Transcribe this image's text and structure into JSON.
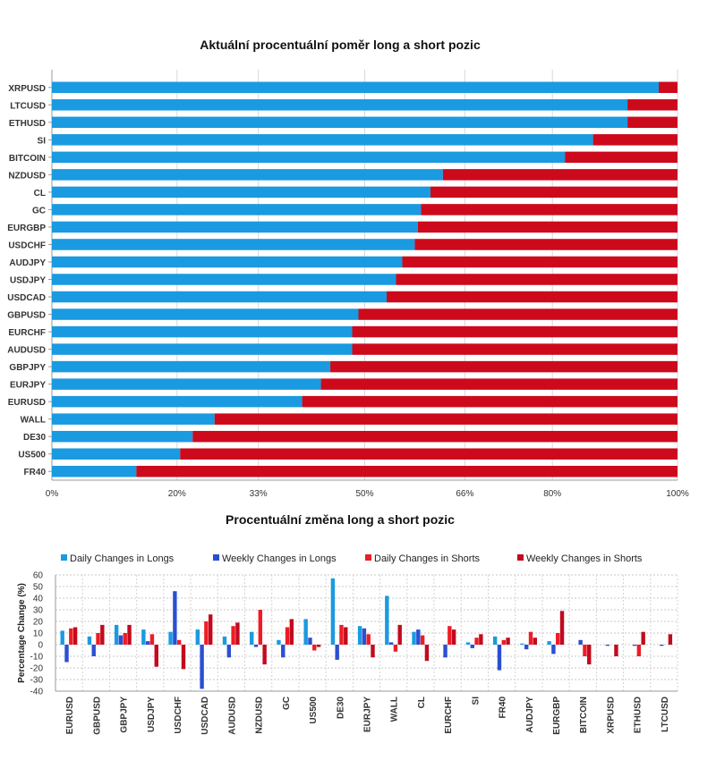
{
  "chart_data": [
    {
      "type": "bar",
      "stacked": true,
      "orientation": "horizontal",
      "title": "Aktuální procentuální poměr long a short pozic",
      "categories": [
        "XRPUSD",
        "LTCUSD",
        "ETHUSD",
        "SI",
        "BITCOIN",
        "NZDUSD",
        "CL",
        "GC",
        "EURGBP",
        "USDCHF",
        "AUDJPY",
        "USDJPY",
        "USDCAD",
        "GBPUSD",
        "EURCHF",
        "AUDUSD",
        "GBPJPY",
        "EURJPY",
        "EURUSD",
        "WALL",
        "DE30",
        "US500",
        "FR40"
      ],
      "series": [
        {
          "name": "",
          "color": "#1a9ae0",
          "values": [
            97,
            92,
            92,
            86.5,
            82,
            62.5,
            60.5,
            59,
            58.5,
            58,
            56,
            55,
            53.5,
            49,
            48,
            48,
            44.5,
            43,
            40,
            26,
            22.5,
            20.5,
            13.5
          ]
        },
        {
          "name": "",
          "color": "#cc0a1c",
          "values": [
            3,
            8,
            8,
            13.5,
            18,
            37.5,
            39.5,
            41,
            41.5,
            42,
            44,
            45,
            46.5,
            51,
            52,
            52,
            55.5,
            57,
            60,
            74,
            77.5,
            79.5,
            86.5
          ]
        }
      ],
      "xticks": [
        "0%",
        "20%",
        "33%",
        "50%",
        "66%",
        "80%",
        "100%"
      ],
      "xlim": [
        0,
        100
      ],
      "grid": true
    },
    {
      "type": "bar",
      "title": "Procentuální změna long a short pozic",
      "ylabel": "Percentage Change (%)",
      "categories": [
        "EURUSD",
        "GBPUSD",
        "GBPJPY",
        "USDJPY",
        "USDCHF",
        "USDCAD",
        "AUDUSD",
        "NZDUSD",
        "GC",
        "US500",
        "DE30",
        "EURJPY",
        "WALL",
        "CL",
        "EURCHF",
        "SI",
        "FR40",
        "AUDJPY",
        "EURGBP",
        "BITCOIN",
        "XRPUSD",
        "ETHUSD",
        "LTCUSD"
      ],
      "series": [
        {
          "name": "Daily Changes in Longs",
          "color": "#1a9ae0",
          "values": [
            12,
            7,
            17,
            13,
            11,
            13,
            7,
            11,
            4,
            22,
            57,
            16,
            42,
            11,
            0,
            2,
            7,
            1,
            3,
            0,
            0,
            0,
            0
          ]
        },
        {
          "name": "Weekly Changes in Longs",
          "color": "#2b4fd1",
          "values": [
            -15,
            -10,
            8,
            3,
            46,
            -38,
            -11,
            -2,
            -11,
            6,
            -13,
            14,
            2,
            13,
            -11,
            -3,
            -22,
            -4,
            -8,
            4,
            -1,
            -1,
            -1
          ]
        },
        {
          "name": "Daily Changes in Shorts",
          "color": "#ee1c25",
          "values": [
            14,
            10,
            10,
            9,
            4,
            20,
            16,
            30,
            15,
            -5,
            17,
            9,
            -6,
            8,
            16,
            6,
            4,
            11,
            10,
            -10,
            0,
            -10,
            0
          ]
        },
        {
          "name": "Weekly Changes in Shorts",
          "color": "#c20a1e",
          "values": [
            15,
            17,
            17,
            -19,
            -21,
            26,
            19,
            -17,
            22,
            -2,
            15,
            -11,
            17,
            -14,
            13,
            9,
            6,
            6,
            29,
            -17,
            -10,
            11,
            9
          ]
        }
      ],
      "yticks": [
        "60",
        "50",
        "40",
        "30",
        "20",
        "10",
        "0",
        "-10",
        "-20",
        "-30",
        "-40"
      ],
      "ylim": [
        -40,
        60
      ],
      "grid": true,
      "legend": "top"
    }
  ]
}
